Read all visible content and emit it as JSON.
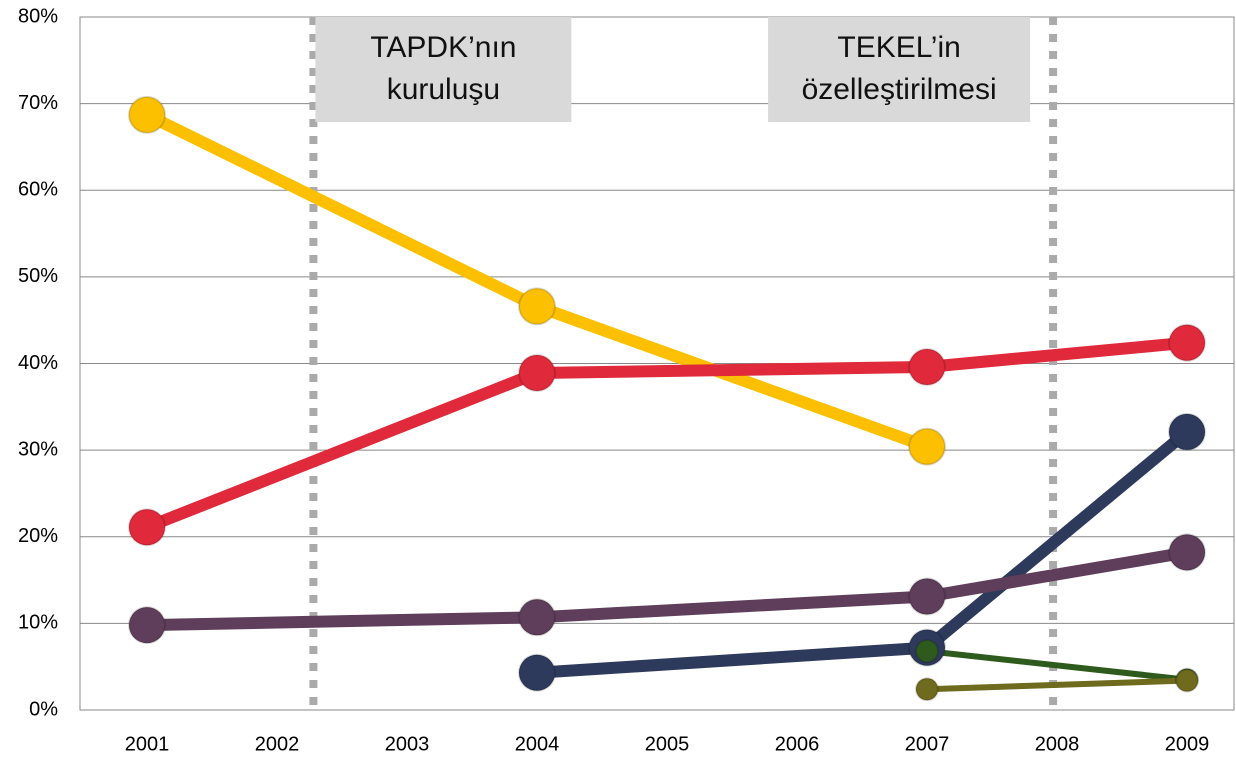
{
  "chart_data": {
    "type": "line",
    "xlim": [
      2000.5,
      2009.5
    ],
    "xticks": [
      2001,
      2002,
      2003,
      2004,
      2005,
      2006,
      2007,
      2008,
      2009
    ],
    "ylim": [
      0,
      80
    ],
    "yticks": [
      {
        "value": 0,
        "label": "0%"
      },
      {
        "value": 10,
        "label": "10%"
      },
      {
        "value": 20,
        "label": "20%"
      },
      {
        "value": 30,
        "label": "30%"
      },
      {
        "value": 40,
        "label": "40%"
      },
      {
        "value": 50,
        "label": "50%"
      },
      {
        "value": 60,
        "label": "60%"
      },
      {
        "value": 70,
        "label": "70%"
      },
      {
        "value": 80,
        "label": "80%"
      }
    ],
    "grid": true,
    "annotations": [
      {
        "x": 2002.28,
        "lines": [
          "TAPDK’nın",
          "kuruluşu"
        ]
      },
      {
        "x": 2007.97,
        "lines": [
          "TEKEL’in",
          "özelleştirilmesi"
        ]
      }
    ],
    "series": [
      {
        "color": "#fcc000",
        "x": [
          2001,
          2004,
          2007
        ],
        "values": [
          68.7,
          46.6,
          30.4
        ]
      },
      {
        "color": "#e0293a",
        "x": [
          2001,
          2004,
          2007,
          2009
        ],
        "values": [
          21.1,
          38.9,
          39.6,
          42.4
        ]
      },
      {
        "color": "#2e3a5c",
        "x": [
          2004,
          2007,
          2009
        ],
        "values": [
          4.3,
          7.2,
          32.1
        ]
      },
      {
        "color": "#5e3e5a",
        "x": [
          2001,
          2004,
          2007,
          2009
        ],
        "values": [
          9.8,
          10.7,
          13.1,
          18.2
        ]
      },
      {
        "color": "#2e5a1e",
        "x": [
          2007,
          2009
        ],
        "values": [
          6.8,
          3.5
        ]
      },
      {
        "color": "#6e6a1e",
        "x": [
          2007,
          2009
        ],
        "values": [
          2.4,
          3.4
        ]
      }
    ]
  }
}
